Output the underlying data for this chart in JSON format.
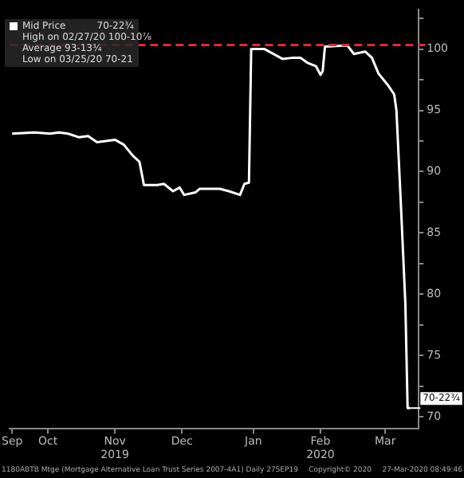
{
  "chart_data": {
    "type": "line",
    "legend": "top left",
    "grid": false,
    "x": [
      "2019-09-30",
      "2019-10-10",
      "2019-10-17",
      "2019-10-21",
      "2019-10-25",
      "2019-10-30",
      "2019-11-03",
      "2019-11-07",
      "2019-11-15",
      "2019-11-19",
      "2019-11-23",
      "2019-11-26",
      "2019-11-28",
      "2019-12-04",
      "2019-12-07",
      "2019-12-11",
      "2019-12-14",
      "2019-12-16",
      "2019-12-21",
      "2019-12-23",
      "2020-01-01",
      "2020-01-05",
      "2020-01-10",
      "2020-01-12",
      "2020-01-14",
      "2020-01-15",
      "2020-01-21",
      "2020-01-29",
      "2020-02-03",
      "2020-02-06",
      "2020-02-09",
      "2020-02-13",
      "2020-02-15",
      "2020-02-16",
      "2020-02-17",
      "2020-02-27",
      "2020-03-01",
      "2020-03-06",
      "2020-03-09",
      "2020-03-12",
      "2020-03-16",
      "2020-03-19",
      "2020-03-20",
      "2020-03-22",
      "2020-03-24",
      "2020-03-25",
      "2020-03-26"
    ],
    "series": [
      {
        "name": "Mid Price",
        "color": "#ffffff",
        "values": [
          93.1,
          93.2,
          93.1,
          93.2,
          93.1,
          92.8,
          92.9,
          92.4,
          92.6,
          92.2,
          91.3,
          90.8,
          88.9,
          88.9,
          89.0,
          88.4,
          88.7,
          88.1,
          88.3,
          88.6,
          88.6,
          88.4,
          88.1,
          89.0,
          89.1,
          100.0,
          100.0,
          99.2,
          99.3,
          99.3,
          98.9,
          98.6,
          97.9,
          98.2,
          100.2,
          100.3,
          99.6,
          99.8,
          99.3,
          98.0,
          97.1,
          96.3,
          95.0,
          87.3,
          79.2,
          70.7,
          70.7
        ]
      }
    ],
    "xlim": [
      "2019-09-29",
      "2020-03-30"
    ],
    "xticks": [
      {
        "value": "2019-09-30",
        "label": "Sep"
      },
      {
        "value": "2019-10-16",
        "label": "Oct"
      },
      {
        "value": "2019-11-15",
        "label": "Nov\n2019"
      },
      {
        "value": "2019-12-15",
        "label": "Dec"
      },
      {
        "value": "2020-01-16",
        "label": "Jan"
      },
      {
        "value": "2020-02-15",
        "label": "Feb\n2020"
      },
      {
        "value": "2020-03-15",
        "label": "Mar"
      }
    ],
    "ylim": [
      69,
      103.2
    ],
    "yticks": [
      70,
      {
        "value": 72.5,
        "label": null
      },
      75,
      {
        "value": 77.5,
        "label": null
      },
      80,
      {
        "value": 82.5,
        "label": null
      },
      85,
      {
        "value": 87.5,
        "label": null
      },
      90,
      {
        "value": 92.5,
        "label": null
      },
      95,
      {
        "value": 97.5,
        "label": null
      },
      100,
      {
        "value": 102.5,
        "label": null
      }
    ],
    "ref_lines": [
      {
        "axis": "y",
        "value": 100.34,
        "color": "#e8262f",
        "line_style": "dashed"
      }
    ],
    "annotations": [
      "70-22¾",
      "High on 02/27/20 100-10⅞",
      "Average 93-13¾",
      "Low on 03/25/20 70-21",
      {
        "text": "70-22¾",
        "x": "2020-03-26",
        "y": 70.7
      },
      "1180ABTB Mtge (Mortgage Alternative Loan Trust Series 2007-4A1) Daily 27SEP19",
      "Copyright© 2020",
      "27-Mar-2020 08:49:46"
    ]
  }
}
